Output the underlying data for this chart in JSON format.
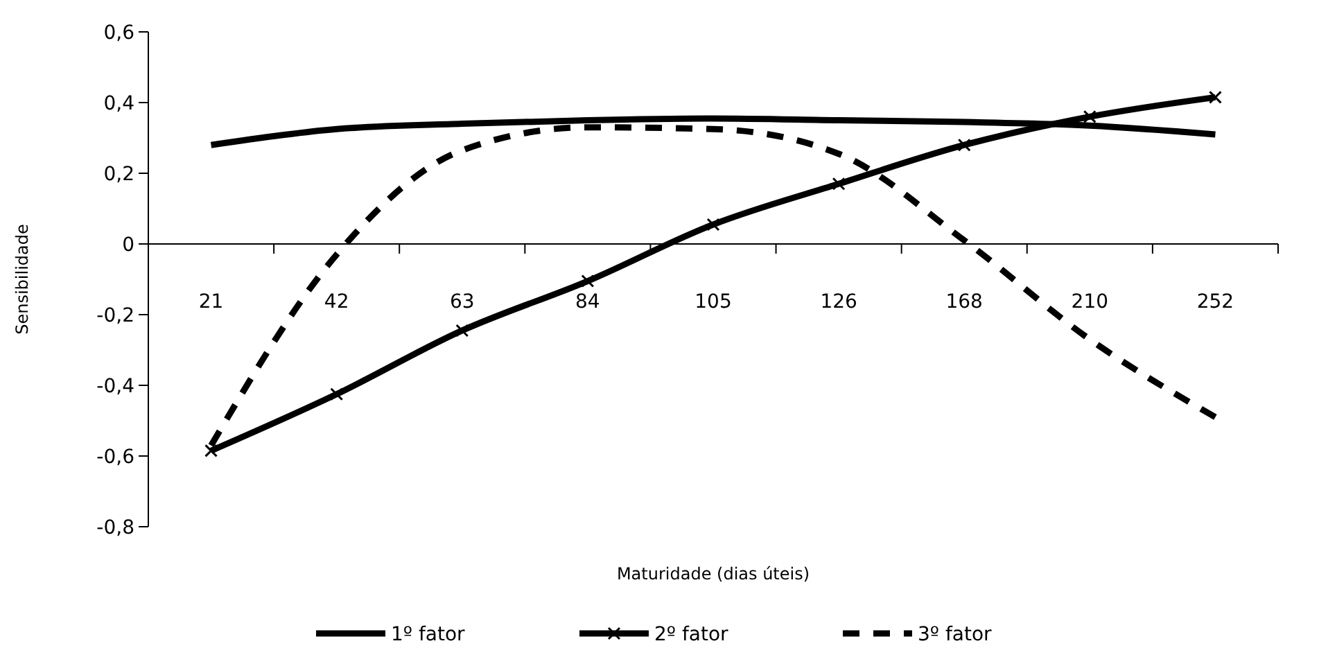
{
  "chart_data": {
    "type": "line",
    "xlabel": "Maturidade (dias úteis)",
    "ylabel": "Sensibilidade",
    "categories": [
      "21",
      "42",
      "63",
      "84",
      "105",
      "126",
      "168",
      "210",
      "252"
    ],
    "ylim": [
      -0.8,
      0.6
    ],
    "yticks": [
      {
        "value": -0.8,
        "label": "-0,8"
      },
      {
        "value": -0.6,
        "label": "-0,6"
      },
      {
        "value": -0.4,
        "label": "-0,4"
      },
      {
        "value": -0.2,
        "label": "-0,2"
      },
      0,
      {
        "value": 0.2,
        "label": "0,2"
      },
      {
        "value": 0.4,
        "label": "0,4"
      },
      {
        "value": 0.6,
        "label": "0,6"
      }
    ],
    "grid": false,
    "legend": "bottom",
    "series": [
      {
        "name": "1º fator",
        "color": "#000000",
        "marker": "none",
        "line_style": "solid",
        "values": [
          0.28,
          0.325,
          0.34,
          0.35,
          0.355,
          0.35,
          0.345,
          0.335,
          0.31
        ]
      },
      {
        "name": "2º fator",
        "color": "#000000",
        "marker": "cross",
        "line_style": "solid",
        "values": [
          -0.585,
          -0.425,
          -0.245,
          -0.105,
          0.055,
          0.17,
          0.28,
          0.36,
          0.415
        ]
      },
      {
        "name": "3º fator",
        "color": "#000000",
        "marker": "none",
        "line_style": "dashed",
        "values": [
          -0.57,
          -0.03,
          0.265,
          0.33,
          0.325,
          0.255,
          0.01,
          -0.27,
          -0.49
        ]
      }
    ]
  }
}
